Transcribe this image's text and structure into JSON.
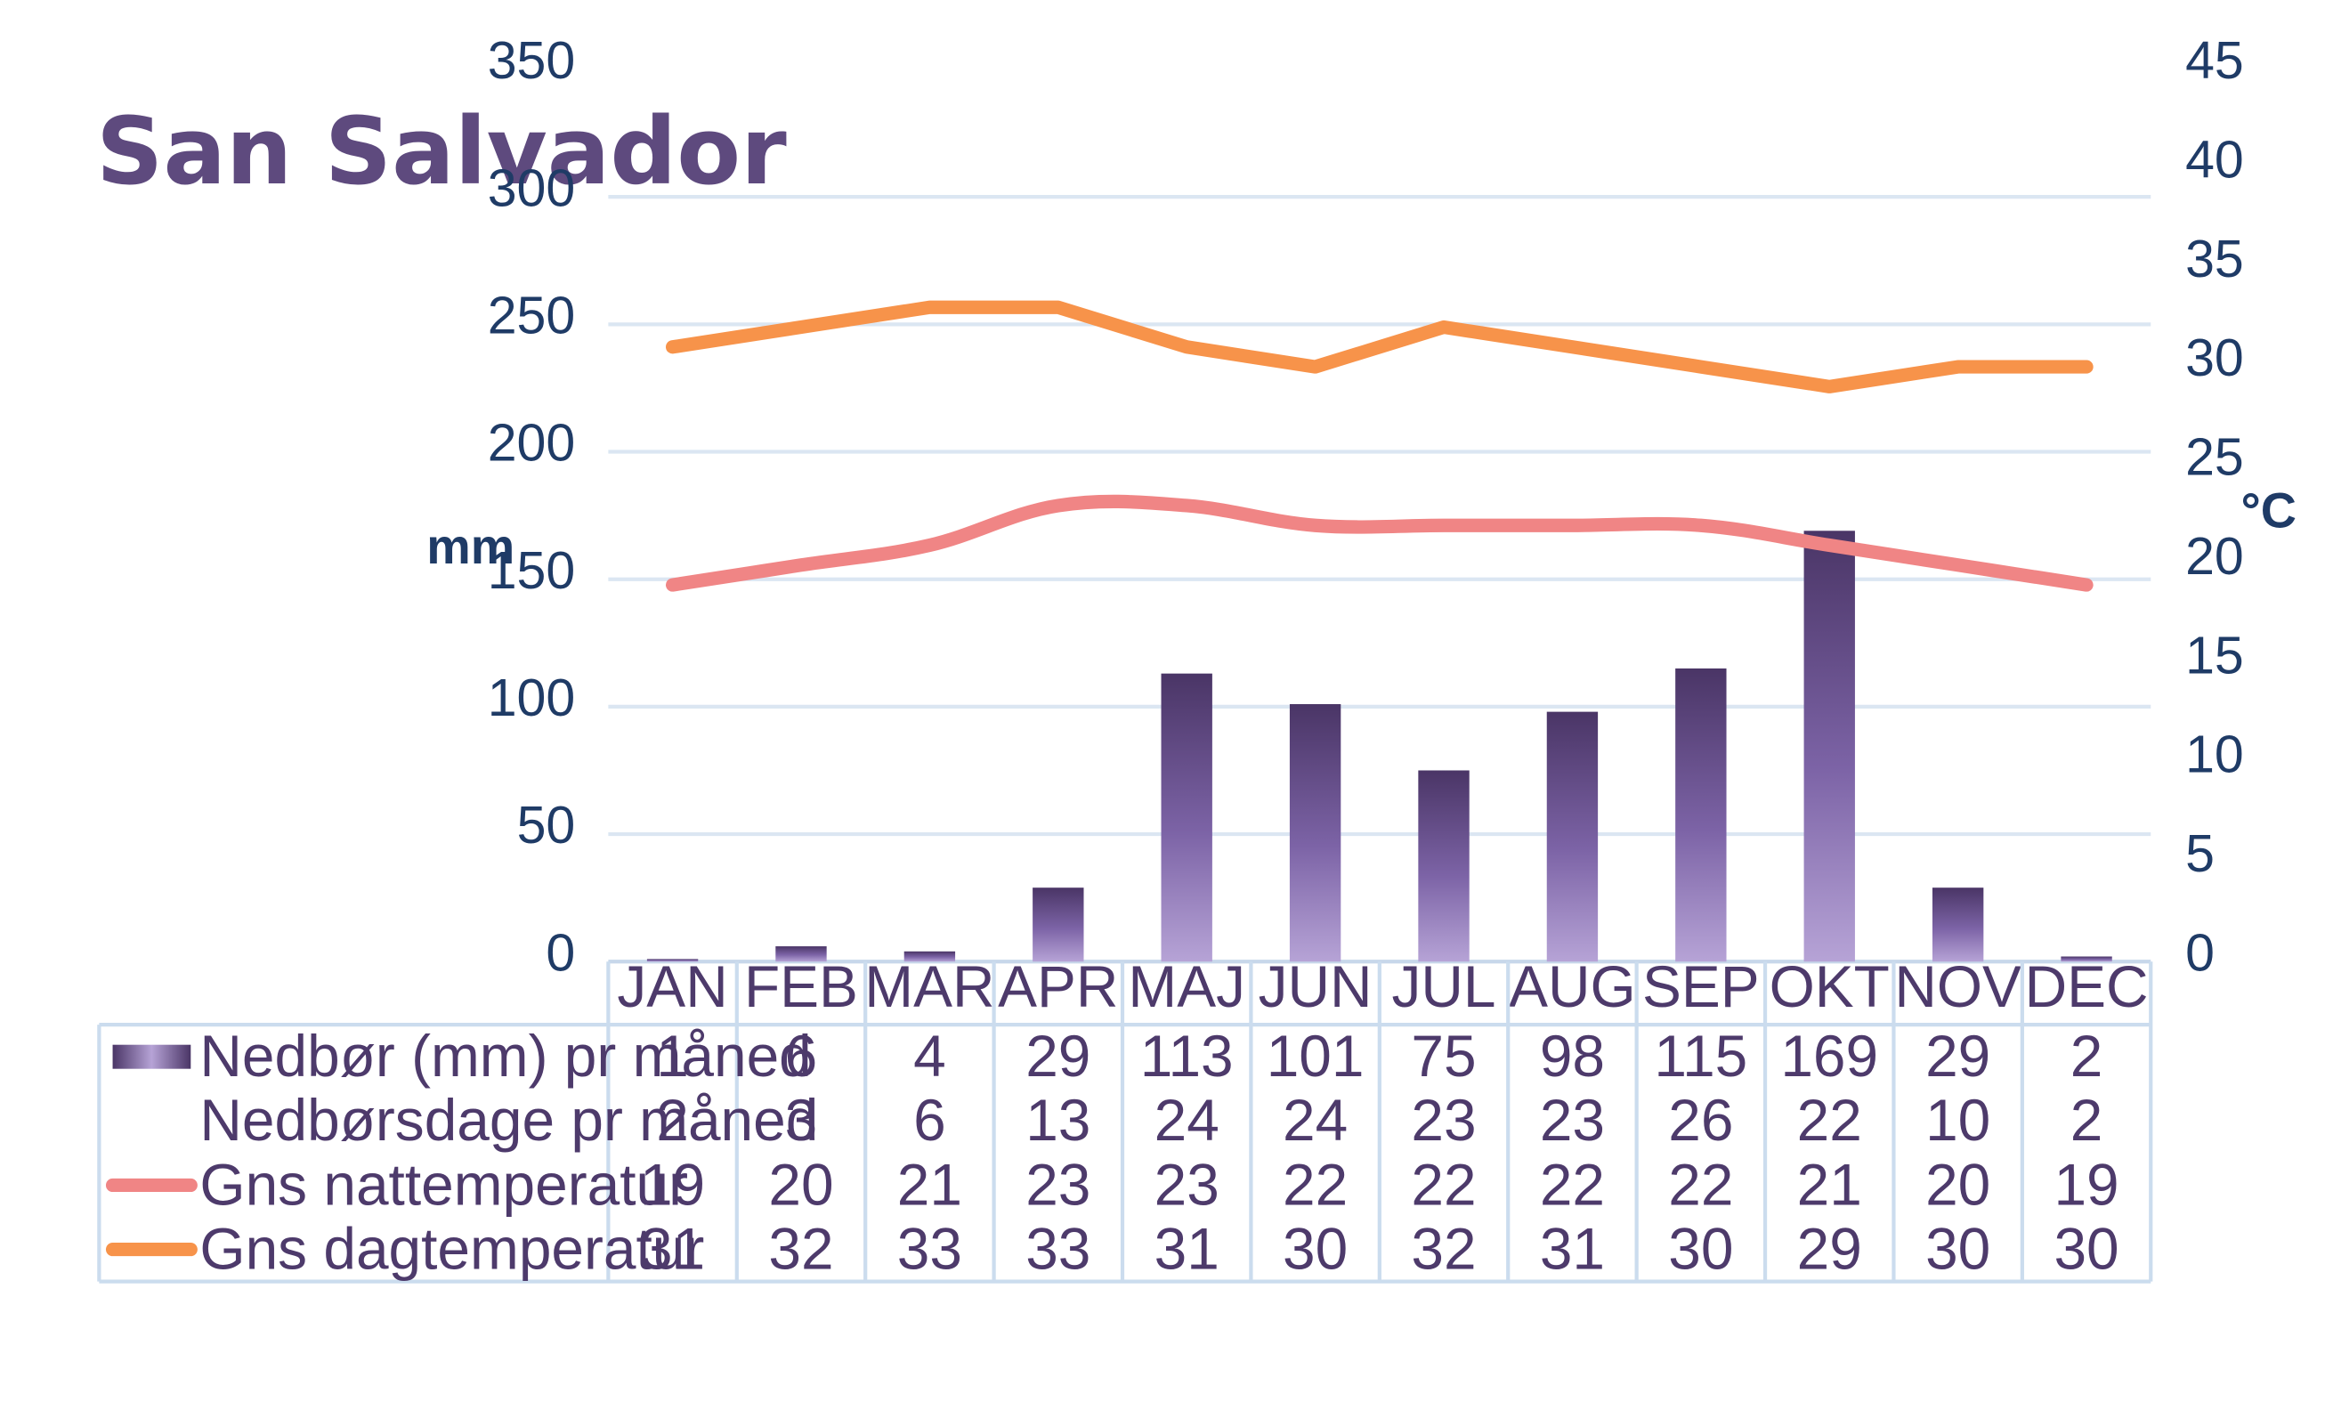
{
  "title": "San Salvador",
  "colors": {
    "title": "#5e4a7e",
    "axis_text": "#1f3b66",
    "table_text": "#4d3a6b",
    "bar_top": "#4a3566",
    "bar_bottom": "#b6a3d6",
    "night_temp": "#f08585",
    "day_temp": "#f7934a",
    "gridline": "#dbe6f2"
  },
  "chart_data": {
    "type": "bar",
    "title": "San Salvador",
    "categories": [
      "JAN",
      "FEB",
      "MAR",
      "APR",
      "MAJ",
      "JUN",
      "JUL",
      "AUG",
      "SEP",
      "OKT",
      "NOV",
      "DEC"
    ],
    "y_left": {
      "label": "mm",
      "range": [
        0,
        350
      ],
      "ticks": [
        "0",
        "50",
        "100",
        "150",
        "200",
        "250",
        "300",
        "350"
      ]
    },
    "y_right": {
      "label": "°C",
      "range": [
        0,
        45
      ],
      "ticks": [
        "0",
        "5",
        "10",
        "15",
        "20",
        "25",
        "30",
        "35",
        "40",
        "45"
      ]
    },
    "gridlines": true,
    "legend_placement": "data table below chart",
    "series": [
      {
        "name": "Nedbør (mm) pr måned",
        "type": "bar",
        "axis": "left",
        "values": [
          1,
          6,
          4,
          29,
          113,
          101,
          75,
          98,
          115,
          169,
          29,
          2
        ],
        "legend_key": "bar"
      },
      {
        "name": "Nedbørsdage pr måned",
        "type": "table-only",
        "values": [
          2,
          3,
          6,
          13,
          24,
          24,
          23,
          23,
          26,
          22,
          10,
          2
        ],
        "legend_key": "none"
      },
      {
        "name": "Gns nattemperatur",
        "type": "line",
        "axis": "right",
        "color": "#f08585",
        "values": [
          19,
          20,
          21,
          23,
          23,
          22,
          22,
          22,
          22,
          21,
          20,
          19
        ],
        "legend_key": "line"
      },
      {
        "name": "Gns dagtemperatur",
        "type": "line",
        "axis": "right",
        "color": "#f7934a",
        "values": [
          31,
          32,
          33,
          33,
          31,
          30,
          32,
          31,
          30,
          29,
          30,
          30
        ],
        "legend_key": "line"
      }
    ]
  }
}
